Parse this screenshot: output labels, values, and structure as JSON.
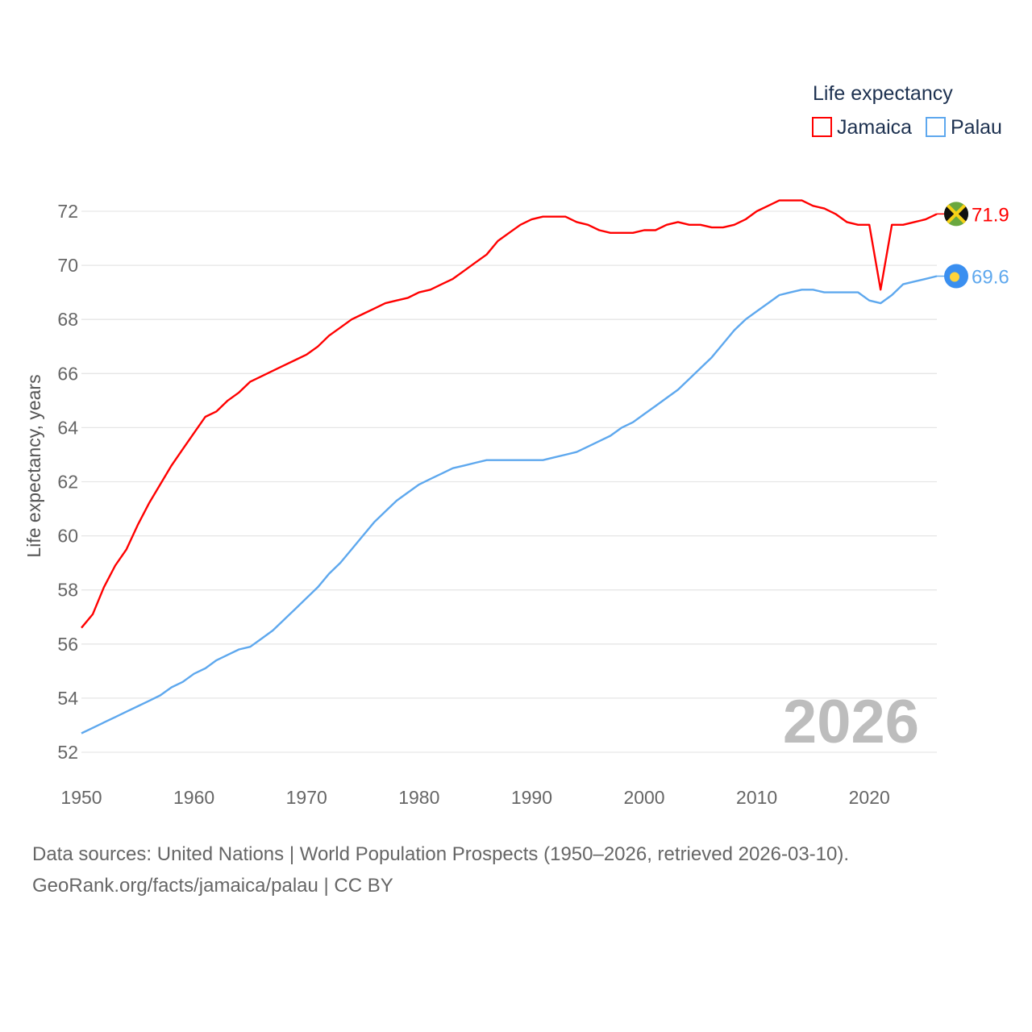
{
  "chart_data": {
    "type": "line",
    "title": "",
    "legend_title": "Life expectancy",
    "legend_position": "top-right",
    "xlabel": "",
    "ylabel": "Life expectancy, years",
    "xlim": [
      1950,
      2026
    ],
    "ylim": [
      52,
      72
    ],
    "x_ticks": [
      1950,
      1960,
      1970,
      1980,
      1990,
      2000,
      2010,
      2020
    ],
    "y_ticks": [
      52,
      54,
      56,
      58,
      60,
      62,
      64,
      66,
      68,
      70,
      72
    ],
    "grid": true,
    "watermark_year": "2026",
    "x_start": 1950,
    "series": [
      {
        "name": "Jamaica",
        "color": "#ff0000",
        "end_label": "71.9",
        "flag": "jamaica-flag",
        "values": [
          56.6,
          57.1,
          58.1,
          58.9,
          59.5,
          60.4,
          61.2,
          61.9,
          62.6,
          63.2,
          63.8,
          64.4,
          64.6,
          65.0,
          65.3,
          65.7,
          65.9,
          66.1,
          66.3,
          66.5,
          66.7,
          67.0,
          67.4,
          67.7,
          68.0,
          68.2,
          68.4,
          68.6,
          68.7,
          68.8,
          69.0,
          69.1,
          69.3,
          69.5,
          69.8,
          70.1,
          70.4,
          70.9,
          71.2,
          71.5,
          71.7,
          71.8,
          71.8,
          71.8,
          71.6,
          71.5,
          71.3,
          71.2,
          71.2,
          71.2,
          71.3,
          71.3,
          71.5,
          71.6,
          71.5,
          71.5,
          71.4,
          71.4,
          71.5,
          71.7,
          72.0,
          72.2,
          72.4,
          72.4,
          72.4,
          72.2,
          72.1,
          71.9,
          71.6,
          71.5,
          71.5,
          69.1,
          71.5,
          71.5,
          71.6,
          71.7,
          71.9
        ]
      },
      {
        "name": "Palau",
        "color": "#5ea8ee",
        "end_label": "69.6",
        "flag": "palau-flag",
        "values": [
          52.7,
          52.9,
          53.1,
          53.3,
          53.5,
          53.7,
          53.9,
          54.1,
          54.4,
          54.6,
          54.9,
          55.1,
          55.4,
          55.6,
          55.8,
          55.9,
          56.2,
          56.5,
          56.9,
          57.3,
          57.7,
          58.1,
          58.6,
          59.0,
          59.5,
          60.0,
          60.5,
          60.9,
          61.3,
          61.6,
          61.9,
          62.1,
          62.3,
          62.5,
          62.6,
          62.7,
          62.8,
          62.8,
          62.8,
          62.8,
          62.8,
          62.8,
          62.9,
          63.0,
          63.1,
          63.3,
          63.5,
          63.7,
          64.0,
          64.2,
          64.5,
          64.8,
          65.1,
          65.4,
          65.8,
          66.2,
          66.6,
          67.1,
          67.6,
          68.0,
          68.3,
          68.6,
          68.9,
          69.0,
          69.1,
          69.1,
          69.0,
          69.0,
          69.0,
          69.0,
          68.7,
          68.6,
          68.9,
          69.3,
          69.4,
          69.5,
          69.6
        ]
      }
    ]
  },
  "footer": {
    "sources": "Data sources: United Nations | World Population Prospects (1950–2026, retrieved 2026-03-10).",
    "credit": "GeoRank.org/facts/jamaica/palau | CC BY"
  }
}
